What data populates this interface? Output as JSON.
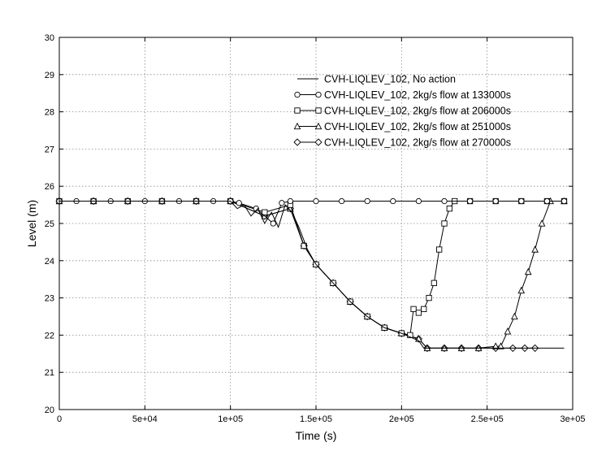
{
  "chart_data": {
    "type": "line",
    "title": "",
    "xlabel": "Time (s)",
    "ylabel": "Level (m)",
    "xlim": [
      0,
      300000
    ],
    "ylim": [
      20,
      30
    ],
    "x_ticks": [
      0,
      50000,
      100000,
      150000,
      200000,
      250000,
      300000
    ],
    "x_tick_labels": [
      "0",
      "5e+04",
      "1e+05",
      "1.5e+05",
      "2e+05",
      "2.5e+05",
      "3e+05"
    ],
    "y_ticks": [
      20,
      21,
      22,
      23,
      24,
      25,
      26,
      27,
      28,
      29,
      30
    ],
    "y_tick_labels": [
      "20",
      "21",
      "22",
      "23",
      "24",
      "25",
      "26",
      "27",
      "28",
      "29",
      "30"
    ],
    "grid": true,
    "legend_position": "top-right",
    "series": [
      {
        "name": "CVH-LIQLEV_102, No action",
        "marker": "none",
        "x": [
          0,
          100000,
          104000,
          108000,
          112000,
          116000,
          120000,
          124000,
          128000,
          132000,
          136000,
          140000,
          145000,
          150000,
          160000,
          170000,
          180000,
          190000,
          200000,
          205000,
          210000,
          213000,
          220000,
          250000,
          280000,
          295000
        ],
        "y": [
          25.6,
          25.6,
          25.4,
          25.5,
          25.2,
          25.4,
          25.0,
          25.3,
          24.9,
          25.5,
          25.3,
          24.9,
          24.3,
          23.9,
          23.4,
          22.9,
          22.5,
          22.2,
          22.05,
          21.95,
          21.85,
          21.65,
          21.65,
          21.65,
          21.65,
          21.65
        ]
      },
      {
        "name": "CVH-LIQLEV_102, 2kg/s flow at 133000s",
        "marker": "circle",
        "x": [
          0,
          10000,
          20000,
          30000,
          40000,
          50000,
          60000,
          70000,
          80000,
          90000,
          100000,
          105000,
          115000,
          125000,
          130000,
          135000,
          150000,
          165000,
          180000,
          195000,
          210000,
          225000,
          240000,
          255000,
          270000,
          285000,
          295000
        ],
        "y": [
          25.6,
          25.6,
          25.6,
          25.6,
          25.6,
          25.6,
          25.6,
          25.6,
          25.6,
          25.6,
          25.6,
          25.55,
          25.4,
          25.0,
          25.55,
          25.6,
          25.6,
          25.6,
          25.6,
          25.6,
          25.6,
          25.6,
          25.6,
          25.6,
          25.6,
          25.6,
          25.6
        ]
      },
      {
        "name": "CVH-LIQLEV_102, 2kg/s flow at 206000s",
        "marker": "square",
        "x": [
          0,
          20000,
          40000,
          60000,
          80000,
          100000,
          120000,
          135000,
          143000,
          150000,
          160000,
          170000,
          180000,
          190000,
          200000,
          205000,
          207000,
          210000,
          213000,
          216000,
          219000,
          222000,
          225000,
          228000,
          231000,
          240000,
          255000,
          270000,
          285000,
          295000
        ],
        "y": [
          25.6,
          25.6,
          25.6,
          25.6,
          25.6,
          25.6,
          25.3,
          25.5,
          24.4,
          23.9,
          23.4,
          22.9,
          22.5,
          22.2,
          22.05,
          22.0,
          22.7,
          22.6,
          22.7,
          23.0,
          23.4,
          24.3,
          25.0,
          25.4,
          25.6,
          25.6,
          25.6,
          25.6,
          25.6,
          25.6
        ]
      },
      {
        "name": "CVH-LIQLEV_102, 2kg/s flow at 251000s",
        "marker": "triangle",
        "x": [
          0,
          20000,
          40000,
          60000,
          80000,
          100000,
          120000,
          135000,
          143000,
          150000,
          160000,
          170000,
          180000,
          190000,
          200000,
          210000,
          215000,
          225000,
          235000,
          245000,
          255000,
          258000,
          262000,
          266000,
          270000,
          274000,
          278000,
          282000,
          287000,
          295000
        ],
        "y": [
          25.6,
          25.6,
          25.6,
          25.6,
          25.6,
          25.6,
          25.2,
          25.4,
          24.4,
          23.9,
          23.4,
          22.9,
          22.5,
          22.2,
          22.05,
          21.9,
          21.65,
          21.65,
          21.65,
          21.65,
          21.7,
          21.7,
          22.1,
          22.5,
          23.2,
          23.7,
          24.3,
          25.0,
          25.6,
          25.6
        ]
      },
      {
        "name": "CVH-LIQLEV_102, 2kg/s flow at 270000s",
        "marker": "diamond",
        "x": [
          0,
          20000,
          40000,
          60000,
          80000,
          100000,
          120000,
          135000,
          143000,
          150000,
          160000,
          170000,
          180000,
          190000,
          200000,
          210000,
          215000,
          225000,
          235000,
          245000,
          255000,
          265000,
          272000,
          278000
        ],
        "y": [
          25.6,
          25.6,
          25.6,
          25.6,
          25.6,
          25.6,
          25.2,
          25.4,
          24.4,
          23.9,
          23.4,
          22.9,
          22.5,
          22.2,
          22.05,
          21.9,
          21.65,
          21.65,
          21.65,
          21.65,
          21.65,
          21.65,
          21.65,
          21.65
        ]
      }
    ],
    "colors": {
      "line": "#000000",
      "grid": "#8a8a8a",
      "background": "#ffffff"
    }
  }
}
